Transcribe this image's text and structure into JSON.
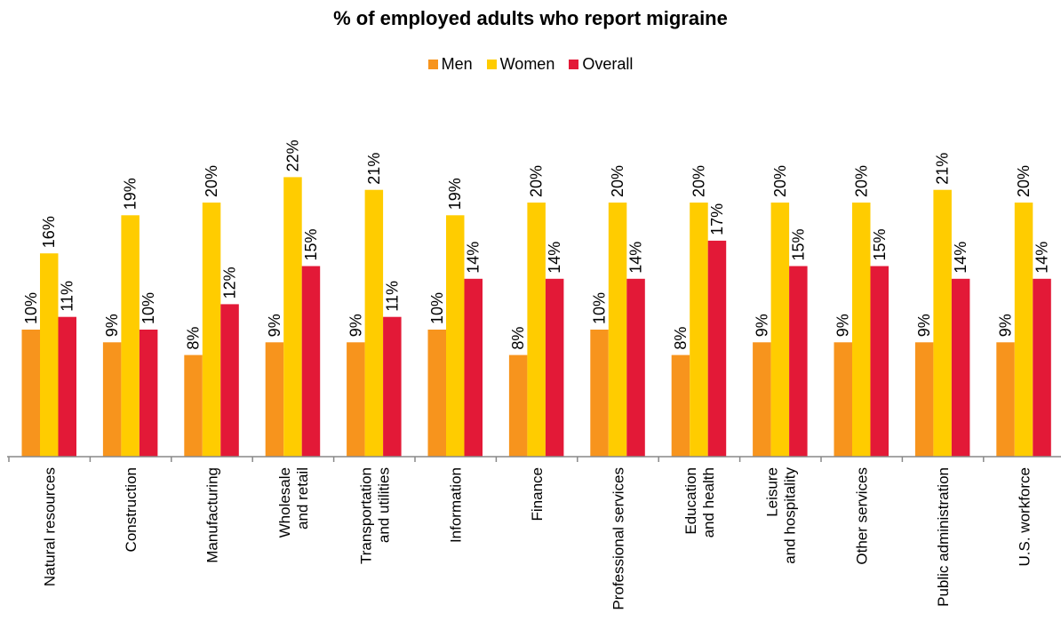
{
  "chart_data": {
    "type": "bar",
    "title": "% of employed adults who report migraine",
    "xlabel": "",
    "ylabel": "",
    "ylim": [
      0,
      25
    ],
    "grid": false,
    "legend": "top-center",
    "categories": [
      [
        "Natural resources"
      ],
      [
        "Construction"
      ],
      [
        "Manufacturing"
      ],
      [
        "Wholesale",
        "and retail"
      ],
      [
        "Transportation",
        "and utilities"
      ],
      [
        "Information"
      ],
      [
        "Finance"
      ],
      [
        "Professional services"
      ],
      [
        "Education",
        "and health"
      ],
      [
        "Leisure",
        "and hospitality"
      ],
      [
        "Other services"
      ],
      [
        "Public administration"
      ],
      [
        "U.S. workforce"
      ]
    ],
    "series": [
      {
        "name": "Men",
        "color": "#F7941D",
        "values": [
          10,
          9,
          8,
          9,
          9,
          10,
          8,
          10,
          8,
          9,
          9,
          9,
          9
        ],
        "labels": [
          "10%",
          "9%",
          "8%",
          "9%",
          "9%",
          "10%",
          "8%",
          "10%",
          "8%",
          "9%",
          "9%",
          "9%",
          "9%"
        ]
      },
      {
        "name": "Women",
        "color": "#FFCC00",
        "values": [
          16,
          19,
          20,
          22,
          21,
          19,
          20,
          20,
          20,
          20,
          20,
          21,
          20
        ],
        "labels": [
          "16%",
          "19%",
          "20%",
          "22%",
          "21%",
          "19%",
          "20%",
          "20%",
          "20%",
          "20%",
          "20%",
          "21%",
          "20%"
        ]
      },
      {
        "name": "Overall",
        "color": "#E31937",
        "values": [
          11,
          10,
          12,
          15,
          11,
          14,
          14,
          14,
          17,
          15,
          15,
          14,
          14
        ],
        "labels": [
          "11%",
          "10%",
          "12%",
          "15%",
          "11%",
          "14%",
          "14%",
          "14%",
          "17%",
          "15%",
          "15%",
          "14%",
          "14%"
        ]
      }
    ]
  }
}
